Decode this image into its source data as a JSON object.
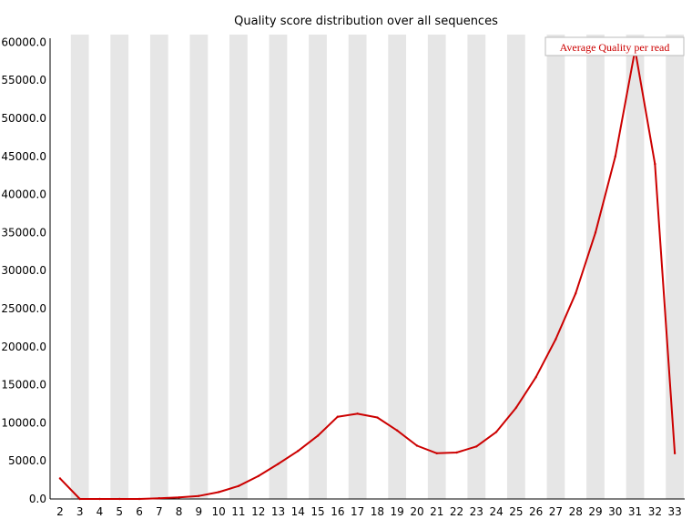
{
  "chart_data": {
    "type": "line",
    "title": "Quality score distribution over all sequences",
    "xlabel": "",
    "ylabel": "",
    "x": [
      2,
      3,
      4,
      5,
      6,
      7,
      8,
      9,
      10,
      11,
      12,
      13,
      14,
      15,
      16,
      17,
      18,
      19,
      20,
      21,
      22,
      23,
      24,
      25,
      26,
      27,
      28,
      29,
      30,
      31,
      32,
      33
    ],
    "y_ticks": [
      "0.0",
      "5000.0",
      "10000.0",
      "15000.0",
      "20000.0",
      "25000.0",
      "30000.0",
      "35000.0",
      "40000.0",
      "45000.0",
      "50000.0",
      "55000.0",
      "60000.0"
    ],
    "ylim": [
      0,
      61000
    ],
    "grid": "alternating vertical bands",
    "legend_position": "top-right",
    "series": [
      {
        "name": "Average Quality per read",
        "color": "#cc0000",
        "values": [
          2700,
          0,
          0,
          0,
          0,
          100,
          200,
          400,
          900,
          1700,
          3000,
          4600,
          6300,
          8300,
          10800,
          11200,
          10700,
          9000,
          7000,
          6000,
          6100,
          6900,
          8800,
          12000,
          16000,
          21000,
          27000,
          35000,
          45000,
          59000,
          44000,
          6000
        ]
      }
    ]
  }
}
